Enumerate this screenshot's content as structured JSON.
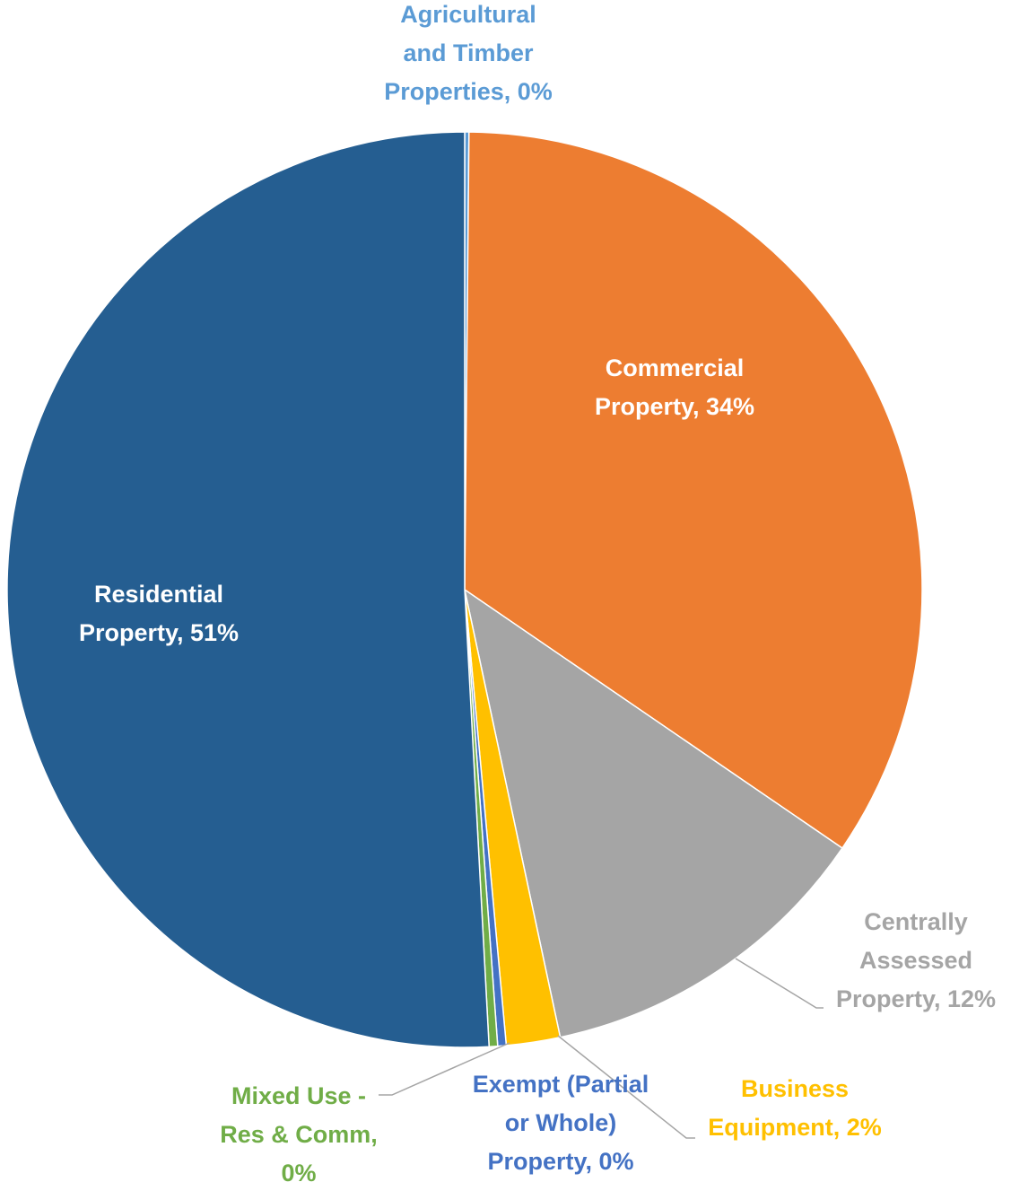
{
  "chart_data": {
    "type": "pie",
    "slices": [
      {
        "name": "Agricultural and Timber Properties",
        "value": 0.15,
        "label_lines": [
          "Agricultural",
          "and Timber",
          "Properties, 0%"
        ],
        "color": "#5B9BD5",
        "label_color": "#5B9BD5"
      },
      {
        "name": "Commercial Property",
        "value": 34.4,
        "label_lines": [
          "Commercial",
          "Property, 34%"
        ],
        "color": "#ED7D31",
        "label_color": "#FFFFFF"
      },
      {
        "name": "Centrally Assessed Property",
        "value": 12.1,
        "label_lines": [
          "Centrally",
          "Assessed",
          "Property, 12%"
        ],
        "color": "#A5A5A5",
        "label_color": "#A5A5A5"
      },
      {
        "name": "Business Equipment",
        "value": 1.9,
        "label_lines": [
          "Business",
          "Equipment, 2%"
        ],
        "color": "#FFC000",
        "label_color": "#FFC000"
      },
      {
        "name": "Exempt (Partial or Whole) Property",
        "value": 0.3,
        "label_lines": [
          "Exempt (Partial",
          "or Whole)",
          "Property, 0%"
        ],
        "color": "#4472C4",
        "label_color": "#4472C4"
      },
      {
        "name": "Mixed Use - Res & Comm",
        "value": 0.3,
        "label_lines": [
          "Mixed Use -",
          "Res & Comm,",
          "0%"
        ],
        "color": "#70AD47",
        "label_color": "#70AD47"
      },
      {
        "name": "Residential Property",
        "value": 50.85,
        "label_lines": [
          "Residential",
          "Property, 51%"
        ],
        "color": "#255E91",
        "label_color": "#FFFFFF"
      }
    ]
  }
}
